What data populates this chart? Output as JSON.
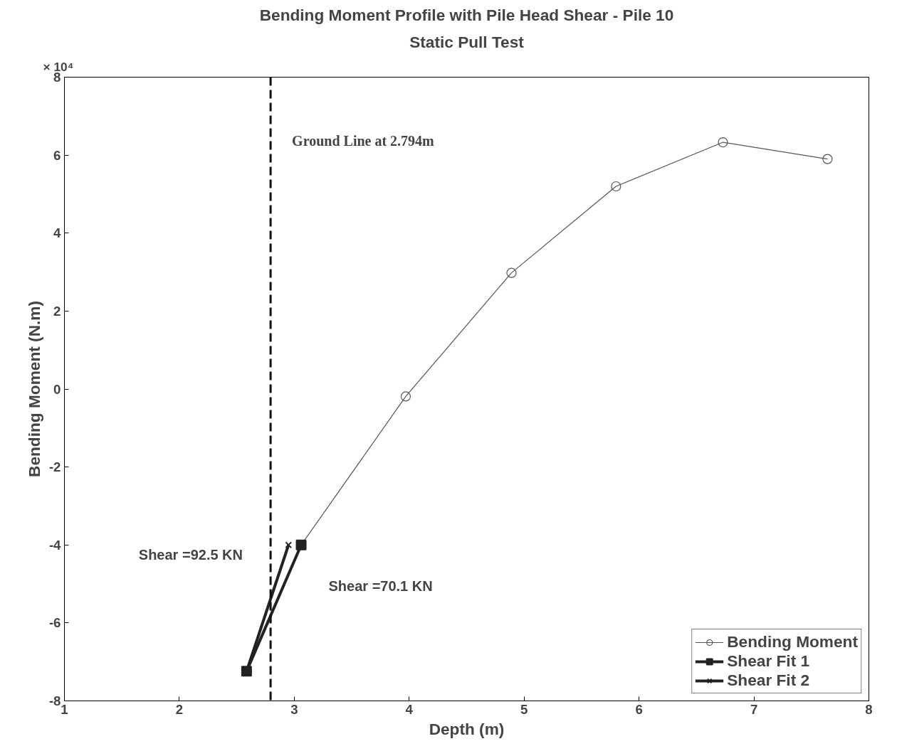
{
  "chart_data": {
    "type": "line",
    "title": "Bending Moment Profile with Pile Head Shear - Pile 10",
    "subtitle": "Static Pull Test",
    "xlabel": "Depth (m)",
    "ylabel": "Bending Moment (N.m)",
    "xlim": [
      1,
      8
    ],
    "xticks": [
      1,
      2,
      3,
      4,
      5,
      6,
      7,
      8
    ],
    "ylim": [
      -8,
      8
    ],
    "yticks": [
      -8,
      -6,
      -4,
      -2,
      0,
      2,
      4,
      6,
      8
    ],
    "grid": false,
    "legend": "bottom right",
    "line_style": "solid",
    "series": [
      {
        "name": "Bending Moment",
        "color": "#555555",
        "marker": "circle",
        "x": [
          3.06,
          3.97,
          4.89,
          5.8,
          6.73,
          7.64
        ],
        "values": [
          -4.0,
          -0.19,
          2.98,
          5.2,
          6.33,
          5.9
        ]
      },
      {
        "name": "Shear Fit 1",
        "color": "#222222",
        "marker": "square",
        "x": [
          2.585,
          3.06
        ],
        "values": [
          -7.24,
          -4.0
        ]
      },
      {
        "name": "Shear Fit 2",
        "color": "#222222",
        "marker": "cross",
        "x": [
          2.585,
          2.95
        ],
        "values": [
          -7.24,
          -4.0
        ]
      }
    ],
    "ref_lines": [
      {
        "axis": "x",
        "value": 2.794,
        "label": "Ground Line at 2.794m",
        "color": "#111111",
        "line_style": "dashed"
      }
    ],
    "annotations": [
      "× 10⁴",
      "Shear =92.5 KN",
      "Shear =70.1 KN"
    ]
  }
}
